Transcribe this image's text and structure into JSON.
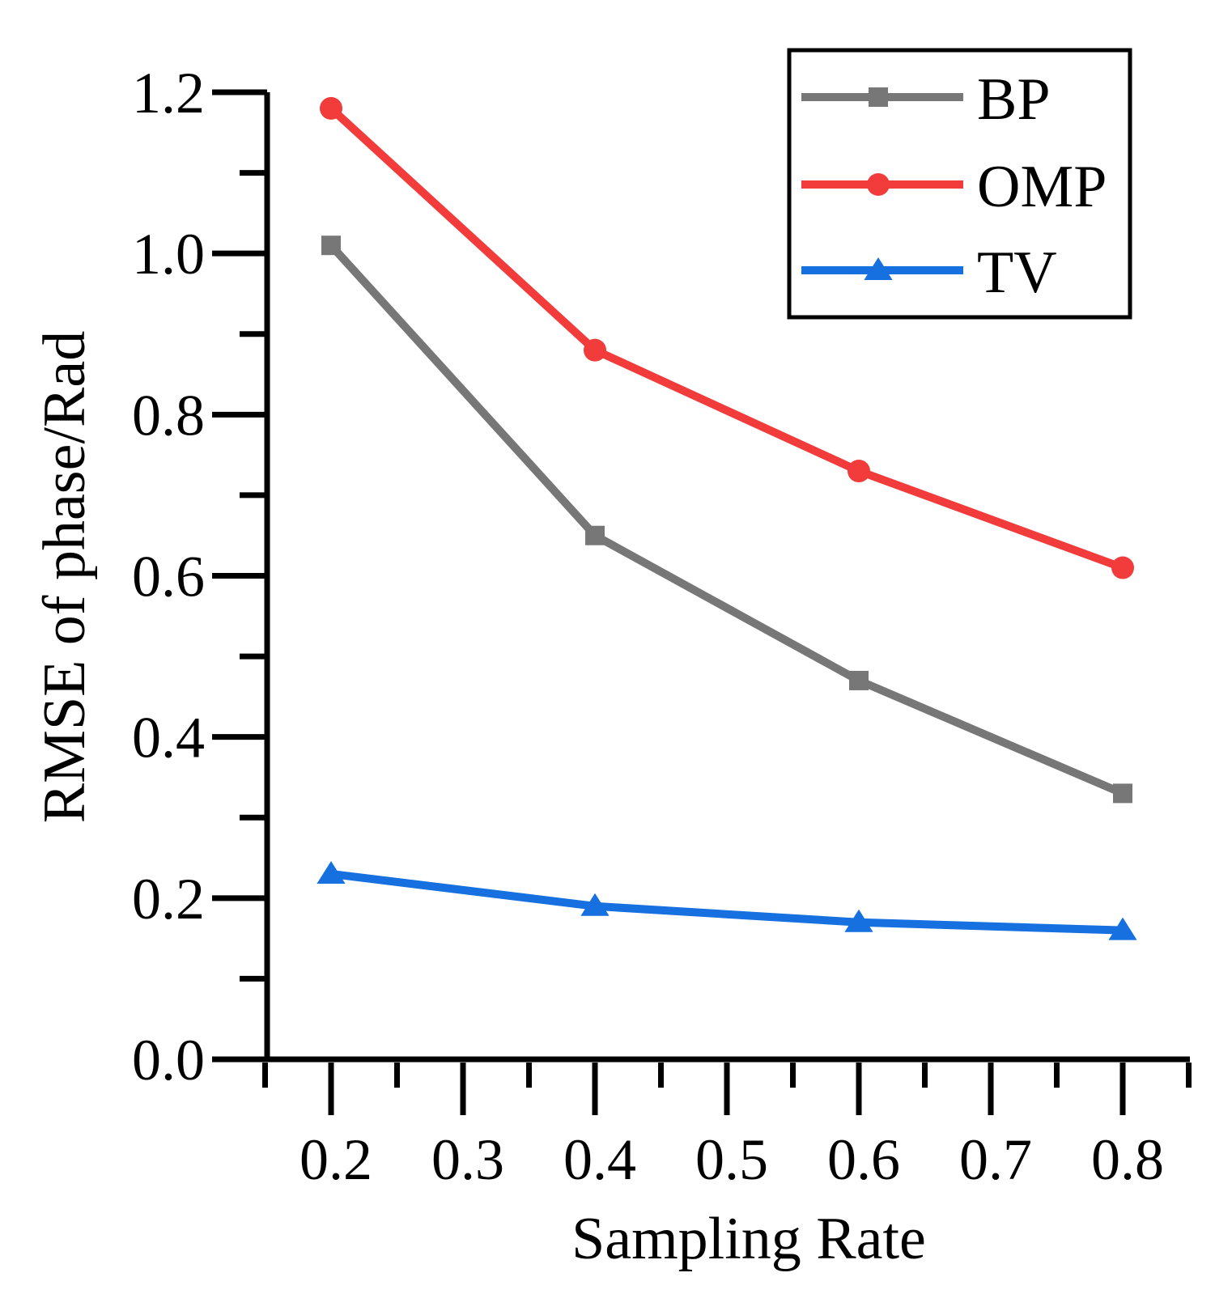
{
  "chart_data": {
    "type": "line",
    "title": "",
    "xlabel": "Sampling Rate",
    "ylabel": "RMSE of phase/Rad",
    "x": [
      0.2,
      0.4,
      0.6,
      0.8
    ],
    "xlim": [
      0.15,
      0.85
    ],
    "ylim": [
      0.0,
      1.2
    ],
    "x_ticks": [
      "0.2",
      "0.3",
      "0.4",
      "0.5",
      "0.6",
      "0.7",
      "0.8"
    ],
    "y_ticks": [
      "0.0",
      "0.2",
      "0.4",
      "0.6",
      "0.8",
      "1.0",
      "1.2"
    ],
    "grid": false,
    "legend_position": "top-right",
    "series": [
      {
        "name": "BP",
        "color": "#777777",
        "marker": "square",
        "values": [
          1.01,
          0.65,
          0.47,
          0.33
        ]
      },
      {
        "name": "OMP",
        "color": "#f23b3b",
        "marker": "circle",
        "values": [
          1.18,
          0.88,
          0.73,
          0.61
        ]
      },
      {
        "name": "TV",
        "color": "#1670e0",
        "marker": "triangle",
        "values": [
          0.23,
          0.19,
          0.17,
          0.16
        ]
      }
    ]
  }
}
